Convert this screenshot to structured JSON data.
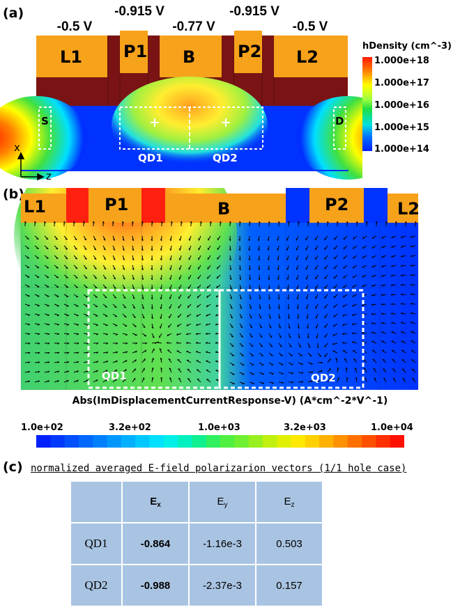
{
  "panel_a": {
    "label": "(a)",
    "voltages": [
      "-0.5 V",
      "-0.915 V",
      "-0.77 V",
      "-0.915 V",
      "-0.5 V"
    ],
    "gates": [
      "L1",
      "P1",
      "B",
      "P2",
      "L2"
    ],
    "contacts": [
      "S",
      "D"
    ],
    "qds": [
      "QD1",
      "QD2"
    ],
    "axes": [
      "x",
      "z"
    ],
    "colorbar": {
      "title": "hDensity (cm^-3)",
      "ticks": [
        "1.000e+18",
        "1.000e+17",
        "1.000e+16",
        "1.000e+15",
        "1.000e+14"
      ]
    }
  },
  "panel_b": {
    "label": "(b)",
    "gates": [
      "L1",
      "P1",
      "B",
      "P2",
      "L2"
    ],
    "qds": [
      "QD1",
      "QD2"
    ],
    "title": "Abs(ImDisplacementCurrentResponse-V) (A*cm^-2*V^-1)",
    "colorbar_ticks": [
      "1.0e+02",
      "3.2e+02",
      "1.0e+03",
      "3.2e+03",
      "1.0e+04"
    ]
  },
  "panel_c": {
    "label": "(c)",
    "caption": "normalized averaged E-field polarizarion vectors (1/1 hole case)",
    "headers": [
      "E",
      "E",
      "E"
    ],
    "header_subs": [
      "x",
      "y",
      "z"
    ],
    "rows": [
      {
        "name": "QD1",
        "ex": "-0.864",
        "ey": "-1.16e-3",
        "ez": "0.503"
      },
      {
        "name": "QD2",
        "ex": "-0.988",
        "ey": "-2.37e-3",
        "ez": "0.157"
      }
    ]
  },
  "colors": {
    "gate": "#f7a21b",
    "oxide": "#7a1414",
    "field_blue": "#0033ff",
    "dashed": "#ffffff"
  }
}
